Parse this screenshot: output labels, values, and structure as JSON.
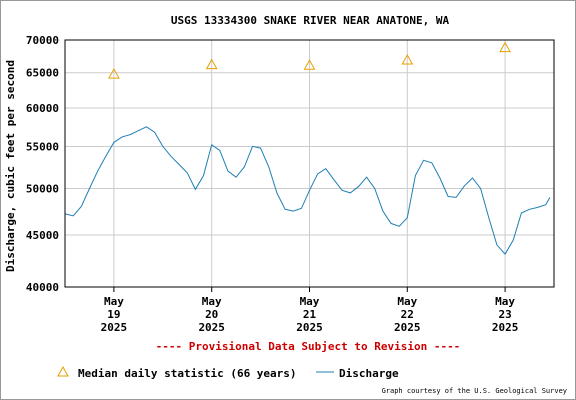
{
  "chart_data": {
    "type": "line",
    "title": "USGS 13334300 SNAKE RIVER NEAR ANATONE, WA",
    "ylabel": "Discharge, cubic feet per second",
    "xlabel": "",
    "y_scale": "log",
    "ylim": [
      40000,
      70000
    ],
    "y_ticks": [
      {
        "value": 40000,
        "label": "40000"
      },
      {
        "value": 45000,
        "label": "45000"
      },
      {
        "value": 50000,
        "label": "50000"
      },
      {
        "value": 55000,
        "label": "55000"
      },
      {
        "value": 60000,
        "label": "60000"
      },
      {
        "value": 65000,
        "label": "65000"
      },
      {
        "value": 70000,
        "label": "70000"
      }
    ],
    "xlim": [
      "2025-05-18 12:00",
      "2025-05-23 12:00"
    ],
    "x_ticks": [
      {
        "x": "2025-05-19 00:00",
        "month": "May",
        "day": "19",
        "year": "2025"
      },
      {
        "x": "2025-05-20 00:00",
        "month": "May",
        "day": "20",
        "year": "2025"
      },
      {
        "x": "2025-05-21 00:00",
        "month": "May",
        "day": "21",
        "year": "2025"
      },
      {
        "x": "2025-05-22 00:00",
        "month": "May",
        "day": "22",
        "year": "2025"
      },
      {
        "x": "2025-05-23 00:00",
        "month": "May",
        "day": "23",
        "year": "2025"
      }
    ],
    "grid": true,
    "legend_position": "bottom",
    "colors": {
      "discharge": "#1f7fb4",
      "median": "#e6a000",
      "grid": "#cccccc",
      "provisional": "#cc0000"
    },
    "series": [
      {
        "name": "Median daily statistic (66 years)",
        "marker": "triangle",
        "points": [
          {
            "x": "2025-05-19 00:00",
            "y": 64800
          },
          {
            "x": "2025-05-20 00:00",
            "y": 66200
          },
          {
            "x": "2025-05-21 00:00",
            "y": 66100
          },
          {
            "x": "2025-05-22 00:00",
            "y": 66900
          },
          {
            "x": "2025-05-23 00:00",
            "y": 68800
          }
        ]
      },
      {
        "name": "Discharge",
        "points": [
          {
            "x": "2025-05-18 12:00",
            "y": 47200
          },
          {
            "x": "2025-05-18 14:00",
            "y": 47000
          },
          {
            "x": "2025-05-18 16:00",
            "y": 48000
          },
          {
            "x": "2025-05-18 18:00",
            "y": 50000
          },
          {
            "x": "2025-05-18 20:00",
            "y": 52000
          },
          {
            "x": "2025-05-18 22:00",
            "y": 53800
          },
          {
            "x": "2025-05-19 00:00",
            "y": 55500
          },
          {
            "x": "2025-05-19 02:00",
            "y": 56200
          },
          {
            "x": "2025-05-19 04:00",
            "y": 56500
          },
          {
            "x": "2025-05-19 06:00",
            "y": 57000
          },
          {
            "x": "2025-05-19 08:00",
            "y": 57500
          },
          {
            "x": "2025-05-19 10:00",
            "y": 56800
          },
          {
            "x": "2025-05-19 12:00",
            "y": 55000
          },
          {
            "x": "2025-05-19 14:00",
            "y": 53800
          },
          {
            "x": "2025-05-19 16:00",
            "y": 52800
          },
          {
            "x": "2025-05-19 18:00",
            "y": 51800
          },
          {
            "x": "2025-05-19 20:00",
            "y": 49900
          },
          {
            "x": "2025-05-19 22:00",
            "y": 51500
          },
          {
            "x": "2025-05-20 00:00",
            "y": 55200
          },
          {
            "x": "2025-05-20 02:00",
            "y": 54500
          },
          {
            "x": "2025-05-20 04:00",
            "y": 52000
          },
          {
            "x": "2025-05-20 06:00",
            "y": 51300
          },
          {
            "x": "2025-05-20 08:00",
            "y": 52500
          },
          {
            "x": "2025-05-20 10:00",
            "y": 55000
          },
          {
            "x": "2025-05-20 12:00",
            "y": 54800
          },
          {
            "x": "2025-05-20 14:00",
            "y": 52500
          },
          {
            "x": "2025-05-20 16:00",
            "y": 49500
          },
          {
            "x": "2025-05-20 18:00",
            "y": 47700
          },
          {
            "x": "2025-05-20 20:00",
            "y": 47500
          },
          {
            "x": "2025-05-20 22:00",
            "y": 47800
          },
          {
            "x": "2025-05-21 00:00",
            "y": 49800
          },
          {
            "x": "2025-05-21 02:00",
            "y": 51700
          },
          {
            "x": "2025-05-21 04:00",
            "y": 52300
          },
          {
            "x": "2025-05-21 06:00",
            "y": 51000
          },
          {
            "x": "2025-05-21 08:00",
            "y": 49800
          },
          {
            "x": "2025-05-21 10:00",
            "y": 49500
          },
          {
            "x": "2025-05-21 12:00",
            "y": 50200
          },
          {
            "x": "2025-05-21 14:00",
            "y": 51300
          },
          {
            "x": "2025-05-21 16:00",
            "y": 50000
          },
          {
            "x": "2025-05-21 18:00",
            "y": 47500
          },
          {
            "x": "2025-05-21 20:00",
            "y": 46200
          },
          {
            "x": "2025-05-21 22:00",
            "y": 45900
          },
          {
            "x": "2025-05-22 00:00",
            "y": 46800
          },
          {
            "x": "2025-05-22 02:00",
            "y": 51500
          },
          {
            "x": "2025-05-22 04:00",
            "y": 53300
          },
          {
            "x": "2025-05-22 06:00",
            "y": 53000
          },
          {
            "x": "2025-05-22 08:00",
            "y": 51200
          },
          {
            "x": "2025-05-22 10:00",
            "y": 49100
          },
          {
            "x": "2025-05-22 12:00",
            "y": 49000
          },
          {
            "x": "2025-05-22 14:00",
            "y": 50300
          },
          {
            "x": "2025-05-22 16:00",
            "y": 51200
          },
          {
            "x": "2025-05-22 18:00",
            "y": 50000
          },
          {
            "x": "2025-05-22 20:00",
            "y": 46800
          },
          {
            "x": "2025-05-22 22:00",
            "y": 44000
          },
          {
            "x": "2025-05-23 00:00",
            "y": 43100
          },
          {
            "x": "2025-05-23 02:00",
            "y": 44500
          },
          {
            "x": "2025-05-23 04:00",
            "y": 47300
          },
          {
            "x": "2025-05-23 06:00",
            "y": 47700
          },
          {
            "x": "2025-05-23 08:00",
            "y": 47900
          },
          {
            "x": "2025-05-23 10:00",
            "y": 48200
          },
          {
            "x": "2025-05-23 11:00",
            "y": 49000
          }
        ]
      }
    ]
  },
  "provisional_note": "---- Provisional Data Subject to Revision ----",
  "legend": {
    "median_label": "Median daily statistic (66 years)",
    "discharge_label": "Discharge"
  },
  "credit": "Graph courtesy of the U.S. Geological Survey"
}
